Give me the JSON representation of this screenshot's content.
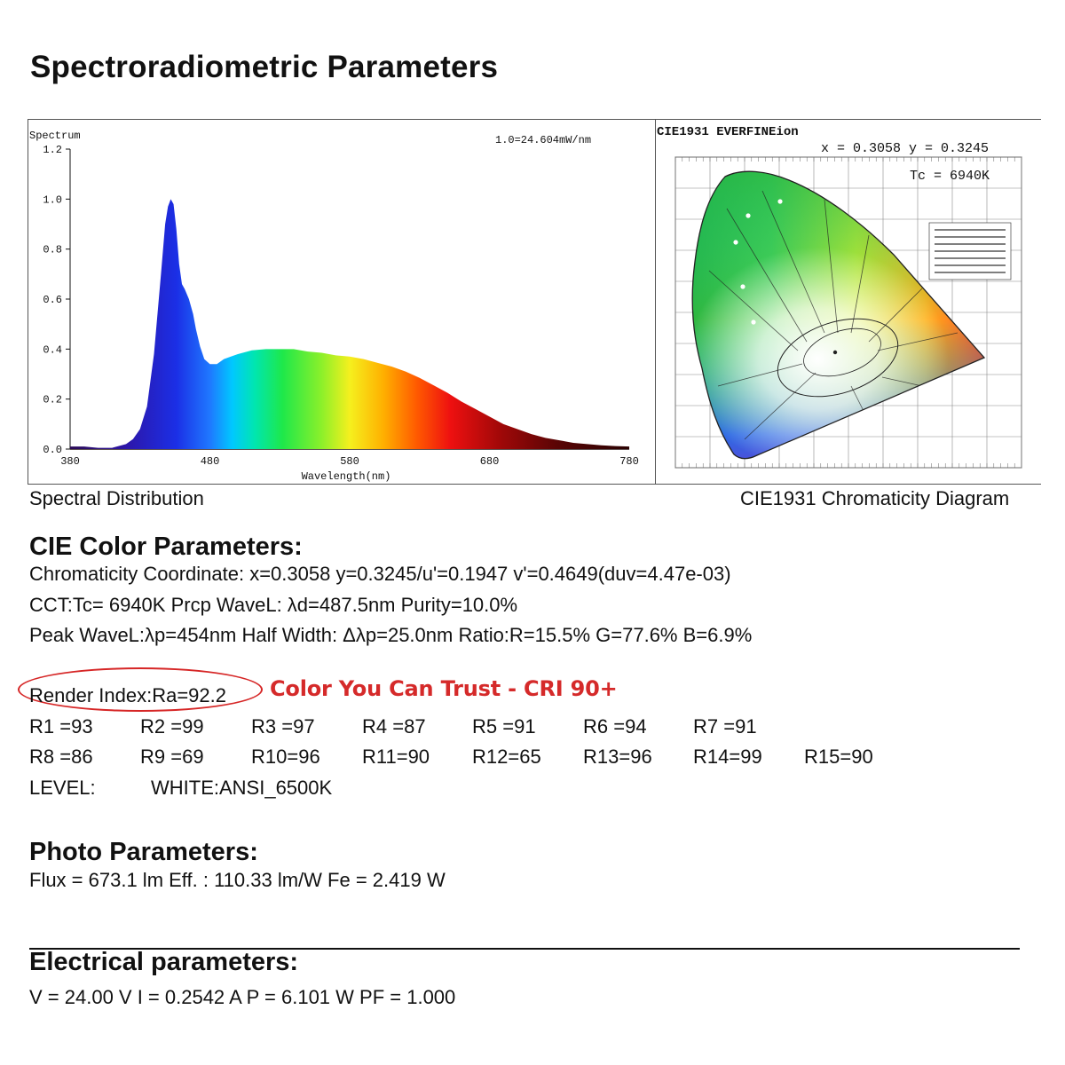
{
  "page_title": "Spectroradiometric Parameters",
  "spectrum": {
    "panel_label": "Spectrum",
    "scale_note": "1.0=24.604mW/nm",
    "caption": "Spectral Distribution",
    "chart_data": {
      "type": "area",
      "title": "Spectrum",
      "xlabel": "Wavelength(nm)",
      "ylabel": "",
      "xlim": [
        380,
        780
      ],
      "ylim": [
        0.0,
        1.2
      ],
      "x_ticks": [
        "380",
        "480",
        "580",
        "680",
        "780"
      ],
      "y_ticks": [
        "0.0",
        "0.2",
        "0.4",
        "0.6",
        "0.8",
        "1.0",
        "1.2"
      ],
      "grid": false,
      "series": [
        {
          "x": [
            380,
            390,
            400,
            410,
            420,
            425,
            430,
            435,
            440,
            445,
            448,
            450,
            452,
            454,
            456,
            458,
            460,
            462,
            465,
            468,
            470,
            473,
            476,
            480,
            485,
            490,
            495,
            500,
            510,
            520,
            530,
            540,
            550,
            560,
            570,
            580,
            590,
            600,
            610,
            620,
            630,
            640,
            650,
            660,
            670,
            680,
            690,
            700,
            710,
            720,
            730,
            740,
            750,
            760,
            770,
            780
          ],
          "y": [
            0.01,
            0.01,
            0.005,
            0.005,
            0.02,
            0.04,
            0.08,
            0.17,
            0.38,
            0.7,
            0.9,
            0.97,
            1.0,
            0.98,
            0.88,
            0.74,
            0.66,
            0.64,
            0.6,
            0.54,
            0.48,
            0.41,
            0.36,
            0.34,
            0.34,
            0.36,
            0.37,
            0.38,
            0.395,
            0.4,
            0.4,
            0.4,
            0.39,
            0.385,
            0.375,
            0.37,
            0.36,
            0.345,
            0.33,
            0.31,
            0.285,
            0.255,
            0.225,
            0.19,
            0.16,
            0.13,
            0.1,
            0.08,
            0.06,
            0.045,
            0.035,
            0.025,
            0.02,
            0.015,
            0.012,
            0.01
          ]
        }
      ]
    }
  },
  "cie": {
    "title": "CIE1931 EVERFINEion",
    "coord_line": "x = 0.3058 y = 0.3245",
    "tc_line": "Tc = 6940K",
    "caption": "CIE1931 Chromaticity Diagram"
  },
  "color_params": {
    "heading": "CIE Color Parameters:",
    "line1": "Chromaticity Coordinate: x=0.3058 y=0.3245/u'=0.1947 v'=0.4649(duv=4.47e-03)",
    "line2": "CCT:Tc=  6940K  Prcp WaveL:   λd=487.5nm Purity=10.0%",
    "line3": "Peak WaveL:λp=454nm  Half Width: Δλp=25.0nm Ratio:R=15.5% G=77.6% B=6.9%",
    "render_index": "Render Index:Ra=92.2",
    "cri_tag": "Color You Can Trust - CRI 90+",
    "r_row1": [
      "R1 =93",
      "R2 =99",
      "R3 =97",
      "R4 =87",
      "R5 =91",
      "R6 =94",
      "R7 =91"
    ],
    "r_row2": [
      "R8 =86",
      "R9 =69",
      "R10=96",
      "R11=90",
      "R12=65",
      "R13=96",
      "R14=99",
      "R15=90"
    ],
    "level_label": "LEVEL:",
    "level_value": "WHITE:ANSI_6500K"
  },
  "photo_params": {
    "heading": "Photo Parameters:",
    "line": "Flux  = 673.1 lm   Eff. : 110.33 lm/W  Fe  = 2.419 W"
  },
  "electrical_params": {
    "heading": "Electrical parameters:",
    "line": "V = 24.00 V     I = 0.2542 A    P = 6.101 W PF = 1.000"
  }
}
